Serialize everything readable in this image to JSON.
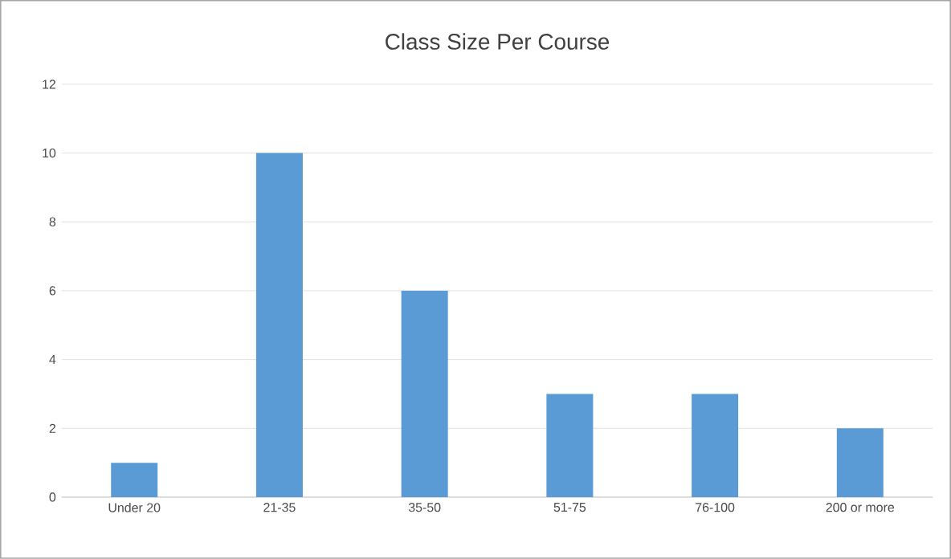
{
  "chart_data": {
    "type": "bar",
    "title": "Class Size Per Course",
    "categories": [
      "Under 20",
      "21-35",
      "35-50",
      "51-75",
      "76-100",
      "200 or more"
    ],
    "values": [
      1,
      10,
      6,
      3,
      3,
      2
    ],
    "color": "#5b9bd5",
    "ylim": [
      0,
      12
    ],
    "yticks": [
      0,
      2,
      4,
      6,
      8,
      10,
      12
    ],
    "grid": "y"
  }
}
